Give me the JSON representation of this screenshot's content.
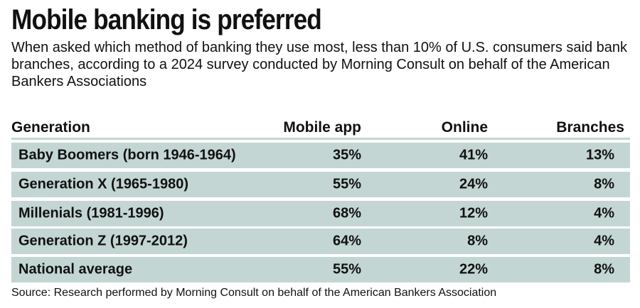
{
  "title": "Mobile banking is preferred",
  "subtitle": "When asked which method of banking they use most, less than 10% of U.S. consumers said bank branches, according to a 2024 survey conducted by Morning Consult on behalf of the American Bankers Associations",
  "source": "Source: Research performed by Morning Consult on behalf of the American Bankers Association",
  "colors": {
    "row_bg": "#c3d6d3"
  },
  "chart_data": {
    "type": "table",
    "title": "Mobile banking is preferred",
    "columns": [
      "Generation",
      "Mobile app",
      "Online",
      "Branches"
    ],
    "rows": [
      [
        "Baby Boomers (born 1946-1964)",
        "35%",
        "41%",
        "13%"
      ],
      [
        "Generation X (1965-1980)",
        "55%",
        "24%",
        "8%"
      ],
      [
        "Millenials (1981-1996)",
        "68%",
        "12%",
        "4%"
      ],
      [
        "Generation Z (1997-2012)",
        "64%",
        "8%",
        "4%"
      ],
      [
        "National average",
        "55%",
        "22%",
        "8%"
      ]
    ]
  }
}
